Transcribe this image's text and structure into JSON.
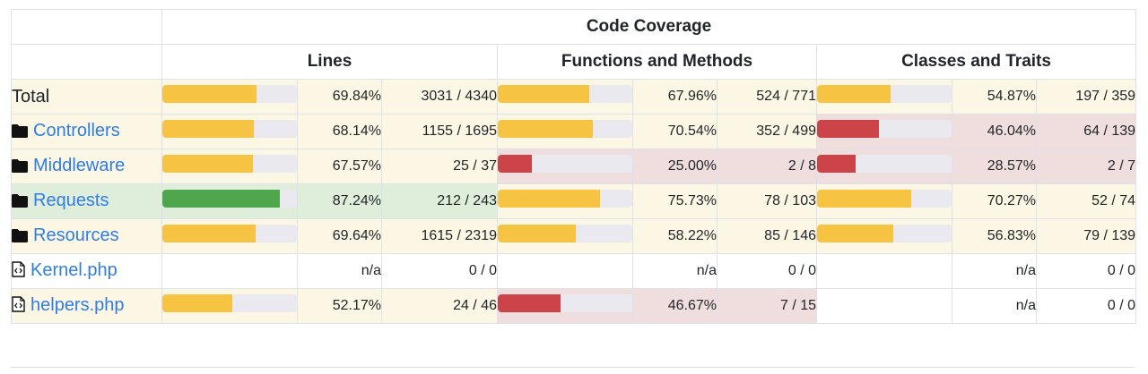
{
  "header": {
    "title": "Code Coverage",
    "groups": [
      "Lines",
      "Functions and Methods",
      "Classes and Traits"
    ]
  },
  "colors": {
    "warning": "#f7c342",
    "danger": "#cc4448",
    "success": "#4fa64c",
    "link": "#2f7de1",
    "warning_bg": "#fcf7e4",
    "danger_bg": "#f0dedf",
    "success_bg": "#dfeedb"
  },
  "rows": [
    {
      "name": "Total",
      "type": "total",
      "icon": "",
      "lines": {
        "pct": "69.84%",
        "ratio": "3031 / 4340",
        "value": 69.84,
        "level": "warn"
      },
      "functions": {
        "pct": "67.96%",
        "ratio": "524 / 771",
        "value": 67.96,
        "level": "warn"
      },
      "classes": {
        "pct": "54.87%",
        "ratio": "197 / 359",
        "value": 54.87,
        "level": "warn"
      }
    },
    {
      "name": "Controllers",
      "type": "dir",
      "icon": "folder-icon",
      "lines": {
        "pct": "68.14%",
        "ratio": "1155 / 1695",
        "value": 68.14,
        "level": "warn"
      },
      "functions": {
        "pct": "70.54%",
        "ratio": "352 / 499",
        "value": 70.54,
        "level": "warn"
      },
      "classes": {
        "pct": "46.04%",
        "ratio": "64 / 139",
        "value": 46.04,
        "level": "danger"
      }
    },
    {
      "name": "Middleware",
      "type": "dir",
      "icon": "folder-icon",
      "lines": {
        "pct": "67.57%",
        "ratio": "25 / 37",
        "value": 67.57,
        "level": "warn"
      },
      "functions": {
        "pct": "25.00%",
        "ratio": "2 / 8",
        "value": 25.0,
        "level": "danger"
      },
      "classes": {
        "pct": "28.57%",
        "ratio": "2 / 7",
        "value": 28.57,
        "level": "danger"
      }
    },
    {
      "name": "Requests",
      "type": "dir",
      "icon": "folder-icon",
      "lines": {
        "pct": "87.24%",
        "ratio": "212 / 243",
        "value": 87.24,
        "level": "success"
      },
      "functions": {
        "pct": "75.73%",
        "ratio": "78 / 103",
        "value": 75.73,
        "level": "warn"
      },
      "classes": {
        "pct": "70.27%",
        "ratio": "52 / 74",
        "value": 70.27,
        "level": "warn"
      }
    },
    {
      "name": "Resources",
      "type": "dir",
      "icon": "folder-icon",
      "lines": {
        "pct": "69.64%",
        "ratio": "1615 / 2319",
        "value": 69.64,
        "level": "warn"
      },
      "functions": {
        "pct": "58.22%",
        "ratio": "85 / 146",
        "value": 58.22,
        "level": "warn"
      },
      "classes": {
        "pct": "56.83%",
        "ratio": "79 / 139",
        "value": 56.83,
        "level": "warn"
      }
    },
    {
      "name": "Kernel.php",
      "type": "file",
      "icon": "code-file-icon",
      "lines": {
        "pct": "n/a",
        "ratio": "0 / 0",
        "value": null,
        "level": "none"
      },
      "functions": {
        "pct": "n/a",
        "ratio": "0 / 0",
        "value": null,
        "level": "none"
      },
      "classes": {
        "pct": "n/a",
        "ratio": "0 / 0",
        "value": null,
        "level": "none"
      }
    },
    {
      "name": "helpers.php",
      "type": "file",
      "icon": "code-file-icon",
      "lines": {
        "pct": "52.17%",
        "ratio": "24 / 46",
        "value": 52.17,
        "level": "warn"
      },
      "functions": {
        "pct": "46.67%",
        "ratio": "7 / 15",
        "value": 46.67,
        "level": "danger"
      },
      "classes": {
        "pct": "n/a",
        "ratio": "0 / 0",
        "value": null,
        "level": "none"
      }
    }
  ]
}
